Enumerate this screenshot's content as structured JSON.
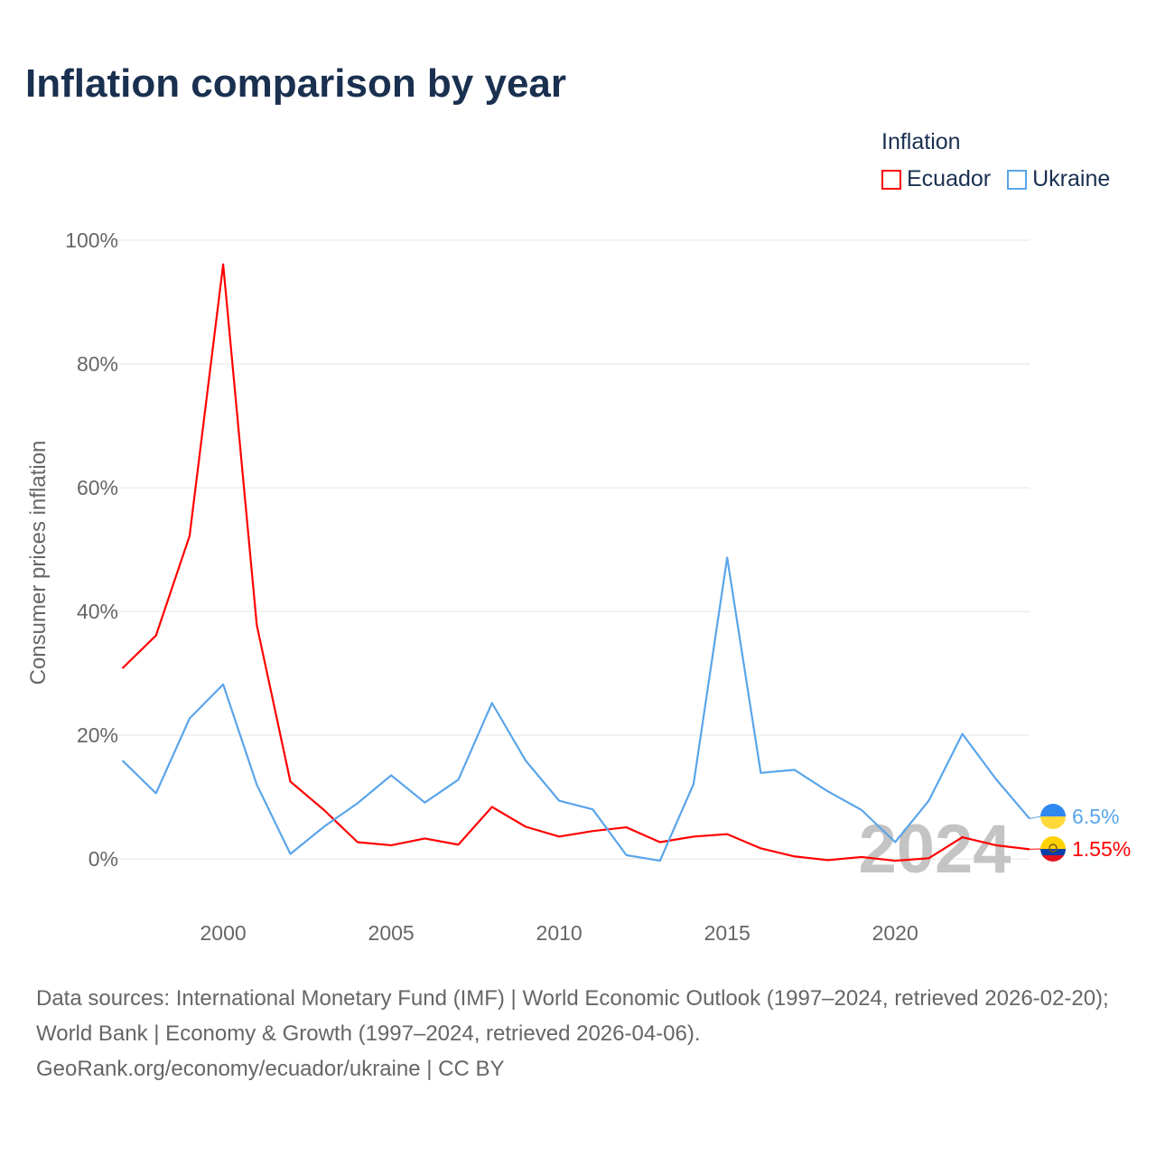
{
  "chart_data": {
    "type": "line",
    "title": "Inflation comparison by year",
    "xlabel": "",
    "ylabel": "Consumer prices inflation",
    "legend_title": "Inflation",
    "legend_position": "top-right",
    "ylim": [
      -8,
      108
    ],
    "xlim": [
      1997,
      2024
    ],
    "yticks": [
      0,
      20,
      40,
      60,
      80,
      100
    ],
    "ytick_labels": [
      "0%",
      "20%",
      "40%",
      "60%",
      "80%",
      "100%"
    ],
    "xticks": [
      2000,
      2005,
      2010,
      2015,
      2020
    ],
    "xtick_labels": [
      "2000",
      "2005",
      "2010",
      "2015",
      "2020"
    ],
    "grid": true,
    "year_watermark": "2024",
    "x": [
      1997,
      1998,
      1999,
      2000,
      2001,
      2002,
      2003,
      2004,
      2005,
      2006,
      2007,
      2008,
      2009,
      2010,
      2011,
      2012,
      2013,
      2014,
      2015,
      2016,
      2017,
      2018,
      2019,
      2020,
      2021,
      2022,
      2023,
      2024
    ],
    "series": [
      {
        "name": "Ecuador",
        "color": "#ff0000",
        "end_label": "1.55%",
        "values": [
          30.8,
          36.1,
          52.2,
          96.1,
          37.8,
          12.5,
          7.9,
          2.7,
          2.2,
          3.3,
          2.3,
          8.4,
          5.2,
          3.6,
          4.5,
          5.1,
          2.7,
          3.6,
          4.0,
          1.7,
          0.4,
          -0.2,
          0.3,
          -0.3,
          0.1,
          3.5,
          2.2,
          1.55
        ]
      },
      {
        "name": "Ukraine",
        "color": "#5aa5ea",
        "end_label": "6.5%",
        "values": [
          15.9,
          10.6,
          22.7,
          28.2,
          12.0,
          0.8,
          5.2,
          9.0,
          13.5,
          9.1,
          12.8,
          25.2,
          15.9,
          9.4,
          8.0,
          0.6,
          -0.3,
          12.1,
          48.7,
          13.9,
          14.4,
          10.9,
          7.9,
          2.7,
          9.4,
          20.2,
          12.9,
          6.5
        ]
      }
    ]
  },
  "footer": {
    "sources": "Data sources: International Monetary Fund (IMF) | World Economic Outlook (1997–2024, retrieved 2026-02-20); World Bank | Economy & Growth (1997–2024, retrieved 2026-04-06).",
    "credit": "GeoRank.org/economy/ecuador/ukraine | CC BY"
  }
}
